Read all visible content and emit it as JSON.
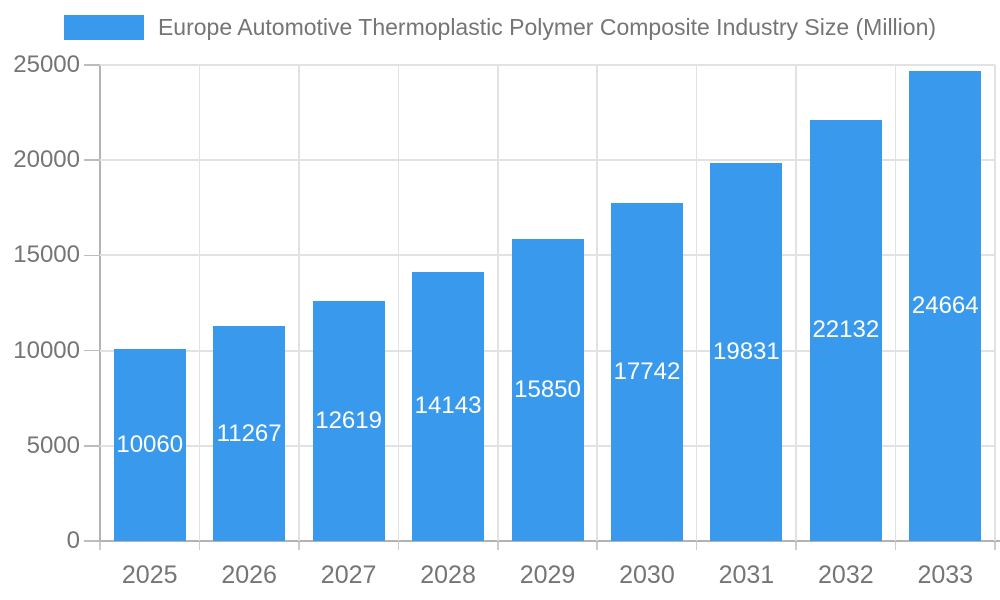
{
  "chart_data": {
    "type": "bar",
    "title": "Europe Automotive Thermoplastic Polymer Composite Industry Size (Million)",
    "legend": {
      "position": "top",
      "entries": [
        "Europe Automotive Thermoplastic Polymer Composite Industry Size (Million)"
      ]
    },
    "categories": [
      "2025",
      "2026",
      "2027",
      "2028",
      "2029",
      "2030",
      "2031",
      "2032",
      "2033"
    ],
    "series": [
      {
        "name": "Europe Automotive Thermoplastic Polymer Composite Industry Size (Million)",
        "values": [
          10060,
          11267,
          12619,
          14143,
          15850,
          17742,
          19831,
          22132,
          24664
        ]
      }
    ],
    "data_labels_shown": true,
    "xlabel": "",
    "ylabel": "",
    "ylim": [
      0,
      25000
    ],
    "yticks": [
      0,
      5000,
      10000,
      15000,
      20000,
      25000
    ],
    "grid": true,
    "colors": {
      "bar": "#3999EC",
      "bar_value_text": "#ffffff",
      "axis_text": "#757575",
      "legend_text": "#757575",
      "gridline": "#e2e2e2",
      "axis_line": "#b3b3b3",
      "background": "#ffffff"
    }
  }
}
